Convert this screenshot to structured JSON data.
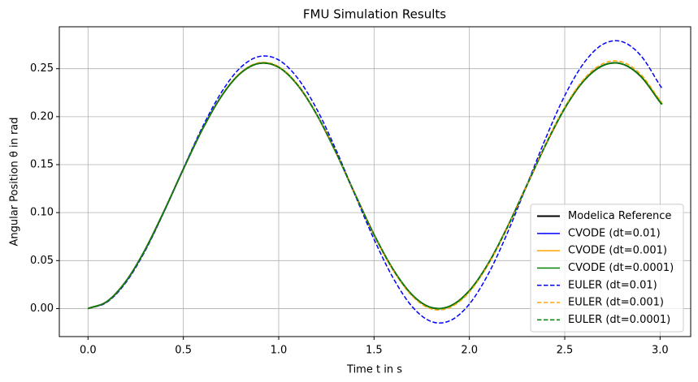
{
  "chart_data": {
    "type": "line",
    "title": "FMU Simulation Results",
    "x_label": "Time t in s",
    "y_label": "Angular Position θ in rad",
    "x": [
      0,
      0.1,
      0.2,
      0.3,
      0.4,
      0.5,
      0.6,
      0.7,
      0.8,
      0.9,
      1.0,
      1.1,
      1.2,
      1.3,
      1.4,
      1.5,
      1.6,
      1.7,
      1.8,
      1.9,
      2.0,
      2.1,
      2.2,
      2.3,
      2.4,
      2.5,
      2.6,
      2.7,
      2.8,
      2.9,
      3.0,
      3.01
    ],
    "series": [
      {
        "name": "Modelica Reference",
        "color": "#000000",
        "dashed": false,
        "linewidth": 2,
        "values": [
          0,
          0.0074,
          0.0287,
          0.0615,
          0.102,
          0.1454,
          0.1869,
          0.2215,
          0.2454,
          0.2557,
          0.2515,
          0.2328,
          0.2021,
          0.1629,
          0.1193,
          0.077,
          0.0407,
          0.0142,
          0.001,
          0.0027,
          0.0186,
          0.0472,
          0.0852,
          0.128,
          0.1708,
          0.2088,
          0.2374,
          0.2533,
          0.255,
          0.2418,
          0.2153,
          0.2129
        ]
      },
      {
        "name": "CVODE (dt=0.01)",
        "color": "#0000ff",
        "dashed": false,
        "linewidth": 1.5,
        "values": [
          0,
          0.0074,
          0.0287,
          0.0615,
          0.102,
          0.1454,
          0.1869,
          0.2215,
          0.2454,
          0.2557,
          0.2515,
          0.2328,
          0.2021,
          0.1629,
          0.1193,
          0.077,
          0.0407,
          0.0142,
          0.001,
          0.0027,
          0.0186,
          0.0472,
          0.0852,
          0.128,
          0.1708,
          0.2088,
          0.2374,
          0.2533,
          0.255,
          0.2418,
          0.2153,
          0.2129
        ]
      },
      {
        "name": "CVODE (dt=0.001)",
        "color": "#ffa500",
        "dashed": false,
        "linewidth": 1.5,
        "values": [
          0,
          0.0074,
          0.0287,
          0.0615,
          0.102,
          0.1454,
          0.1869,
          0.2215,
          0.2454,
          0.2557,
          0.2515,
          0.2328,
          0.2021,
          0.1629,
          0.1193,
          0.077,
          0.0407,
          0.0142,
          0.001,
          0.0027,
          0.0186,
          0.0472,
          0.0852,
          0.128,
          0.1708,
          0.2088,
          0.2374,
          0.2533,
          0.255,
          0.2418,
          0.2153,
          0.2129
        ]
      },
      {
        "name": "CVODE (dt=0.0001)",
        "color": "#008000",
        "dashed": false,
        "linewidth": 1.5,
        "values": [
          0,
          0.0074,
          0.0287,
          0.0615,
          0.102,
          0.1454,
          0.1869,
          0.2215,
          0.2454,
          0.2557,
          0.2515,
          0.2328,
          0.2021,
          0.1629,
          0.1193,
          0.077,
          0.0407,
          0.0142,
          0.001,
          0.0027,
          0.0186,
          0.0472,
          0.0852,
          0.128,
          0.1708,
          0.2088,
          0.2374,
          0.2533,
          0.255,
          0.2418,
          0.2153,
          0.2129
        ]
      },
      {
        "name": "EULER (dt=0.01)",
        "color": "#0000ff",
        "dashed": true,
        "linewidth": 1.5,
        "values": [
          0,
          0.0067,
          0.0275,
          0.0603,
          0.1013,
          0.146,
          0.1891,
          0.2255,
          0.2512,
          0.2628,
          0.2591,
          0.24,
          0.2077,
          0.1657,
          0.1185,
          0.0722,
          0.0319,
          0.002,
          -0.0135,
          -0.0125,
          0.0047,
          0.0364,
          0.0791,
          0.128,
          0.1775,
          0.2219,
          0.2558,
          0.2754,
          0.2782,
          0.2634,
          0.2325,
          0.2297
        ]
      },
      {
        "name": "EULER (dt=0.001)",
        "color": "#ffa500",
        "dashed": true,
        "linewidth": 1.5,
        "values": [
          0,
          0.0073,
          0.0286,
          0.0614,
          0.1019,
          0.1455,
          0.1871,
          0.2219,
          0.246,
          0.2564,
          0.2522,
          0.2335,
          0.2026,
          0.1632,
          0.1192,
          0.0765,
          0.0399,
          0.013,
          -0.0004,
          0.0013,
          0.0173,
          0.0462,
          0.0846,
          0.128,
          0.1714,
          0.21,
          0.2391,
          0.2553,
          0.2571,
          0.2438,
          0.2169,
          0.2144
        ]
      },
      {
        "name": "EULER (dt=0.0001)",
        "color": "#008000",
        "dashed": true,
        "linewidth": 1.5,
        "values": [
          0,
          0.0074,
          0.0287,
          0.0615,
          0.102,
          0.1454,
          0.1869,
          0.2215,
          0.2454,
          0.2557,
          0.2515,
          0.2328,
          0.2021,
          0.1629,
          0.1193,
          0.077,
          0.0407,
          0.0142,
          0.001,
          0.0027,
          0.0186,
          0.0472,
          0.0852,
          0.128,
          0.1708,
          0.2088,
          0.2374,
          0.2533,
          0.255,
          0.2418,
          0.2153,
          0.2129
        ]
      }
    ],
    "xlim": [
      -0.1505,
      3.1605
    ],
    "ylim": [
      -0.0292,
      0.2937
    ],
    "xticks": [
      {
        "value": 0,
        "label": "0.0"
      },
      {
        "value": 0.5,
        "label": "0.5"
      },
      {
        "value": 1,
        "label": "1.0"
      },
      {
        "value": 1.5,
        "label": "1.5"
      },
      {
        "value": 2,
        "label": "2.0"
      },
      {
        "value": 2.5,
        "label": "2.5"
      },
      {
        "value": 3,
        "label": "3.0"
      }
    ],
    "yticks": [
      {
        "value": 0,
        "label": "0.00"
      },
      {
        "value": 0.05,
        "label": "0.05"
      },
      {
        "value": 0.1,
        "label": "0.10"
      },
      {
        "value": 0.15,
        "label": "0.15"
      },
      {
        "value": 0.2,
        "label": "0.20"
      },
      {
        "value": 0.25,
        "label": "0.25"
      }
    ],
    "grid": true,
    "legend": "lower right"
  }
}
